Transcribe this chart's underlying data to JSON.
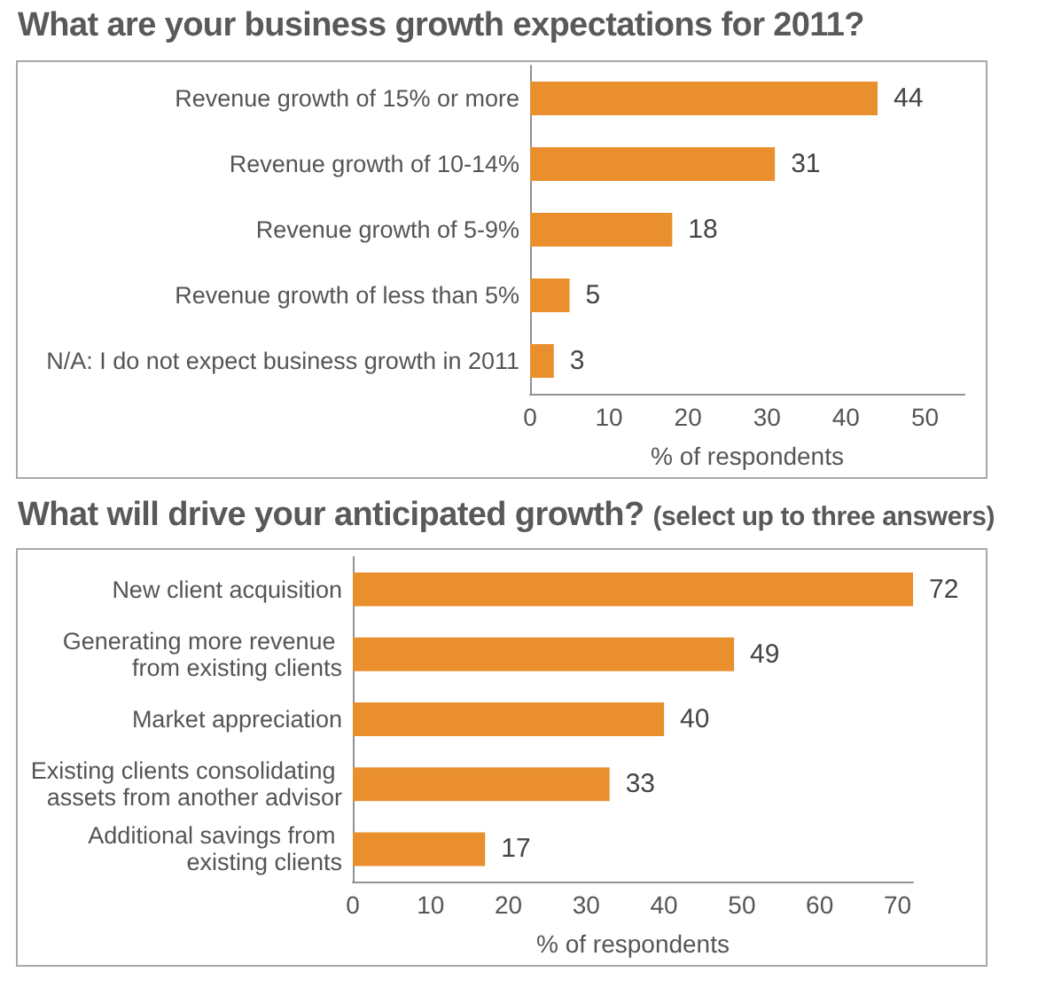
{
  "chart_data": [
    {
      "type": "bar",
      "orientation": "horizontal",
      "title": "What are your business growth expectations for 2011?",
      "xlabel": "% of respondents",
      "categories": [
        "Revenue growth of 15% or more",
        "Revenue growth of 10-14%",
        "Revenue growth of 5-9%",
        "Revenue growth of less than 5%",
        "N/A: I do not expect business growth in 2011"
      ],
      "values": [
        44,
        31,
        18,
        5,
        3
      ],
      "color": "#e98f2d",
      "xlim": [
        0,
        55
      ],
      "xticks": [
        0,
        10,
        20,
        30,
        40,
        50
      ],
      "data_labels": true
    },
    {
      "type": "bar",
      "orientation": "horizontal",
      "title": "What will drive your anticipated growth?",
      "subtitle": "(select up to three answers)",
      "xlabel": "% of respondents",
      "categories": [
        "New client acquisition",
        "Generating more revenue from existing clients",
        "Market appreciation",
        "Existing clients consolidating assets from another advisor",
        "Additional savings from existing clients"
      ],
      "values": [
        72,
        49,
        40,
        33,
        17
      ],
      "color": "#e98f2d",
      "xlim": [
        0,
        72
      ],
      "xticks": [
        0,
        10,
        20,
        30,
        40,
        50,
        60,
        70
      ],
      "data_labels": true
    }
  ]
}
